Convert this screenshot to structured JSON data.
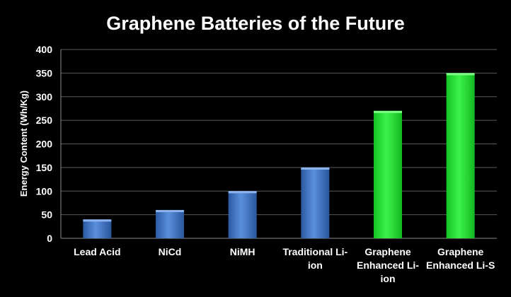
{
  "chart_data": {
    "type": "bar",
    "title": "Graphene Batteries of the Future",
    "ylabel": "Energy Content (Wh/Kg)",
    "xlabel": "",
    "ylim": [
      0,
      400
    ],
    "yticks": [
      0,
      50,
      100,
      150,
      200,
      250,
      300,
      350,
      400
    ],
    "grid": true,
    "categories": [
      [
        "Lead Acid"
      ],
      [
        "NiCd"
      ],
      [
        "NiMH"
      ],
      [
        "Traditional Li-",
        "ion"
      ],
      [
        "Graphene",
        "Enhanced Li-",
        "ion"
      ],
      [
        "Graphene",
        "Enhanced Li-S"
      ]
    ],
    "values": [
      40,
      60,
      100,
      150,
      270,
      350
    ],
    "bar_colors": [
      "#3f74c4",
      "#3f74c4",
      "#3f74c4",
      "#3f74c4",
      "#22dd33",
      "#22dd33"
    ]
  }
}
